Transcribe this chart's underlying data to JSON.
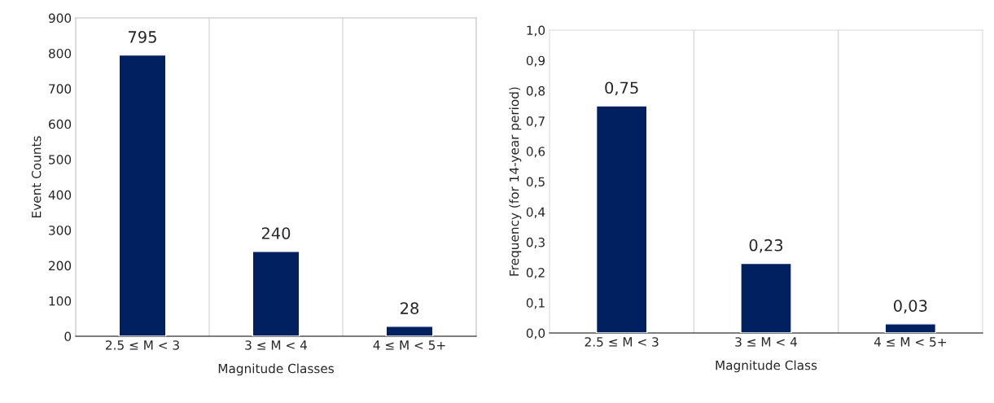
{
  "chart_data": [
    {
      "type": "bar",
      "categories": [
        "2.5 ≤ M < 3",
        "3 ≤ M < 4",
        "4 ≤ M < 5+"
      ],
      "xlabel": "Magnitude Classes",
      "ylabel": "Event Counts",
      "values": [
        795,
        240,
        28
      ],
      "color": "#002060",
      "ylim": [
        0,
        900
      ],
      "yticks": [
        0,
        100,
        200,
        300,
        400,
        500,
        600,
        700,
        800,
        900
      ],
      "grid": "x",
      "data_labels": true
    },
    {
      "type": "bar",
      "categories": [
        "2.5 ≤ M < 3",
        "3 ≤ M < 4",
        "4 ≤ M < 5+"
      ],
      "xlabel": "Magnitude Class",
      "ylabel": "Frequency (for 14-year period)",
      "values": [
        0.75,
        0.23,
        0.03
      ],
      "value_labels": [
        "0,75",
        "0,23",
        "0,03"
      ],
      "color": "#002060",
      "ylim": [
        0,
        1.0
      ],
      "yticks": [
        {
          "value": 0,
          "label": "0,0"
        },
        {
          "value": 0.1,
          "label": "0,1"
        },
        {
          "value": 0.2,
          "label": "0,2"
        },
        {
          "value": 0.3,
          "label": "0,3"
        },
        {
          "value": 0.4,
          "label": "0,4"
        },
        {
          "value": 0.5,
          "label": "0,5"
        },
        {
          "value": 0.6,
          "label": "0,6"
        },
        {
          "value": 0.7,
          "label": "0,7"
        },
        {
          "value": 0.8,
          "label": "0,8"
        },
        {
          "value": 0.9,
          "label": "0,9"
        },
        {
          "value": 1.0,
          "label": "1,0"
        }
      ],
      "grid": "x"
    }
  ]
}
